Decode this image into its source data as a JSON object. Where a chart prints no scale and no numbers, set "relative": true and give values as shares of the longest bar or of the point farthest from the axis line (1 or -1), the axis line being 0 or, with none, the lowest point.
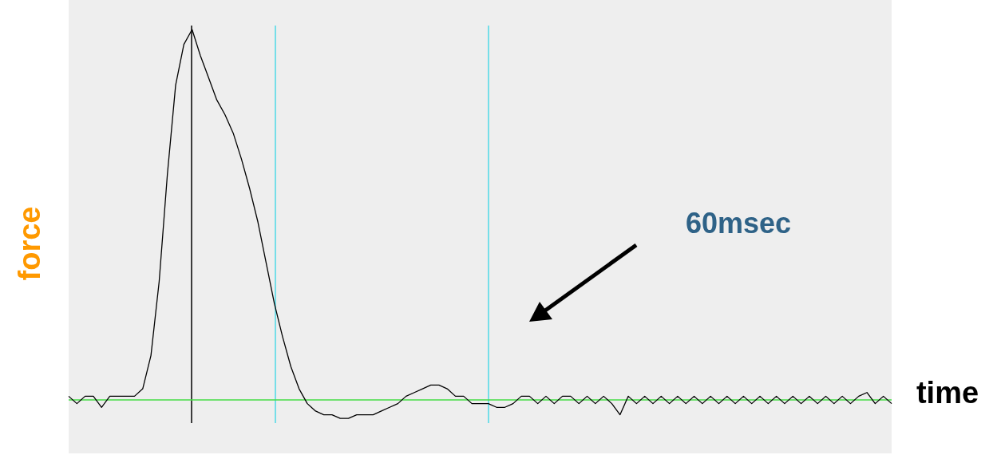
{
  "chart_data": {
    "type": "line",
    "relative": true,
    "xlabel": "time",
    "ylabel": "force",
    "annotations": [
      "60msec"
    ],
    "categories": [
      null,
      null,
      null,
      null,
      null,
      null,
      null,
      null,
      null,
      null,
      null,
      null,
      null,
      null,
      null,
      null,
      null,
      null,
      null,
      null,
      null,
      null,
      null,
      null,
      null,
      null,
      null,
      null,
      null,
      null,
      null,
      null,
      null,
      null,
      null,
      null,
      null,
      null,
      null,
      null,
      null,
      null,
      null,
      null,
      null,
      null,
      null,
      null,
      null,
      null,
      null,
      null,
      null,
      null,
      null,
      null,
      null,
      null,
      null,
      null,
      null,
      null,
      null,
      null,
      null,
      null,
      null,
      null,
      null,
      null,
      null,
      null,
      null,
      null,
      null,
      null,
      null,
      null,
      null,
      null,
      null,
      null,
      null,
      null,
      null,
      null,
      null,
      null,
      null,
      null,
      null,
      null,
      null,
      null,
      null,
      null,
      null,
      null,
      null,
      null,
      null
    ],
    "series": [
      {
        "color": "#000000",
        "values": [
          0.01,
          -0.01,
          0.01,
          0.01,
          -0.02,
          0.01,
          0.01,
          0.01,
          0.01,
          0.03,
          0.12,
          0.32,
          0.61,
          0.85,
          0.96,
          1,
          0.93,
          0.87,
          0.81,
          0.77,
          0.72,
          0.65,
          0.57,
          0.48,
          0.37,
          0.26,
          0.17,
          0.09,
          0.03,
          -0.01,
          -0.03,
          -0.04,
          -0.04,
          -0.05,
          -0.05,
          -0.04,
          -0.04,
          -0.04,
          -0.03,
          -0.02,
          -0.01,
          0.01,
          0.02,
          0.03,
          0.04,
          0.04,
          0.03,
          0.01,
          0.01,
          -0.01,
          -0.01,
          -0.01,
          -0.02,
          -0.02,
          -0.01,
          0.01,
          0.01,
          -0.01,
          0.01,
          -0.01,
          0.01,
          0.01,
          -0.01,
          0.01,
          -0.01,
          0.01,
          -0.01,
          -0.04,
          0.01,
          -0.01,
          0.01,
          -0.01,
          0.01,
          -0.01,
          0.01,
          -0.01,
          0.01,
          -0.01,
          0.01,
          -0.01,
          0.01,
          -0.01,
          0.01,
          -0.01,
          0.01,
          -0.01,
          0.01,
          -0.01,
          0.01,
          -0.01,
          0.01,
          -0.01,
          0.01,
          -0.01,
          0.01,
          -0.01,
          0.01,
          0.02,
          -0.01,
          0.01,
          -0.01
        ]
      }
    ],
    "ref_lines": [
      {
        "axis": "y",
        "value": 0,
        "color": "#44dd44"
      }
    ]
  }
}
